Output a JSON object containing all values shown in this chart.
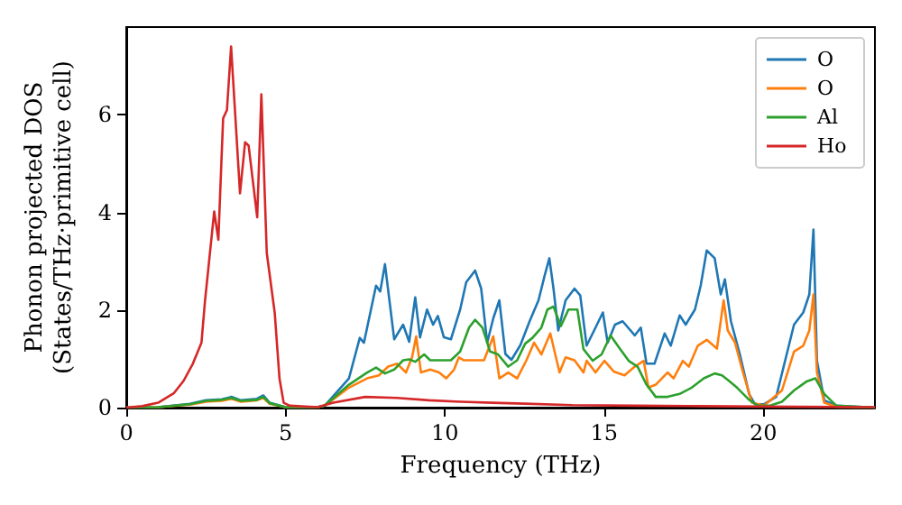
{
  "chart_data": {
    "type": "line",
    "xlabel": "Frequency (THz)",
    "ylabel": "Phonon projected DOS\n(States/THz·primitive cell)",
    "xlim": [
      0,
      23.5
    ],
    "xticks": [
      0,
      5,
      10,
      15,
      20
    ],
    "ylim": [
      0,
      7.8
    ],
    "yticks": [
      0,
      2,
      4,
      6
    ],
    "grid": false,
    "legend": "top right",
    "marker": "none",
    "line_style": "solid",
    "series": [
      {
        "name": "O",
        "color": "#1f77b4",
        "x": [
          0,
          1,
          2,
          2.5,
          3,
          3.3,
          3.6,
          4.1,
          4.3,
          4.5,
          5,
          6,
          6.23,
          6.99,
          7.33,
          7.46,
          7.84,
          7.97,
          8.12,
          8.41,
          8.69,
          8.88,
          9.07,
          9.22,
          9.44,
          9.63,
          9.78,
          9.97,
          10.19,
          10.48,
          10.67,
          10.95,
          11.14,
          11.33,
          11.52,
          11.71,
          11.9,
          12.09,
          12.37,
          12.66,
          12.94,
          13.13,
          13.28,
          13.41,
          13.56,
          13.79,
          14.07,
          14.25,
          14.45,
          14.73,
          14.96,
          15.11,
          15.34,
          15.58,
          15.96,
          16.15,
          16.33,
          16.58,
          16.9,
          17.09,
          17.37,
          17.56,
          17.85,
          18.03,
          18.22,
          18.47,
          18.66,
          18.79,
          18.98,
          19.26,
          19.55,
          19.73,
          20.02,
          20.4,
          20.68,
          20.96,
          21.25,
          21.44,
          21.57,
          21.68,
          21.91,
          22.29,
          23.5
        ],
        "values": [
          0,
          0.01,
          0.08,
          0.15,
          0.17,
          0.22,
          0.15,
          0.18,
          0.25,
          0.1,
          0.01,
          0.01,
          0.04,
          0.6,
          1.43,
          1.33,
          2.5,
          2.38,
          2.94,
          1.4,
          1.7,
          1.35,
          2.26,
          1.44,
          2.01,
          1.7,
          1.88,
          1.44,
          1.4,
          2.01,
          2.57,
          2.81,
          2.44,
          1.33,
          1.83,
          2.2,
          1.1,
          0.98,
          1.28,
          1.77,
          2.2,
          2.7,
          3.06,
          2.44,
          1.58,
          2.2,
          2.44,
          2.3,
          1.27,
          1.64,
          1.95,
          1.33,
          1.7,
          1.77,
          1.48,
          1.64,
          0.9,
          0.9,
          1.52,
          1.27,
          1.89,
          1.7,
          2.01,
          2.5,
          3.22,
          3.06,
          2.32,
          2.63,
          1.77,
          1.09,
          0.28,
          0.07,
          0.07,
          0.22,
          0.96,
          1.7,
          1.95,
          2.32,
          3.65,
          0.96,
          0.15,
          0.04,
          0
        ]
      },
      {
        "name": "O",
        "color": "#ff7f0e",
        "x": [
          0,
          1,
          2,
          2.5,
          3,
          3.3,
          3.6,
          4.1,
          4.3,
          4.5,
          5,
          6,
          6.23,
          6.99,
          7.56,
          7.93,
          8.22,
          8.5,
          8.78,
          8.97,
          9.1,
          9.25,
          9.54,
          9.82,
          10.04,
          10.29,
          10.44,
          10.6,
          10.95,
          11.23,
          11.52,
          11.71,
          11.99,
          12.27,
          12.56,
          12.8,
          13.03,
          13.31,
          13.6,
          13.79,
          14.07,
          14.35,
          14.45,
          14.73,
          15.01,
          15.3,
          15.64,
          15.96,
          16.24,
          16.39,
          16.62,
          16.99,
          17.18,
          17.47,
          17.66,
          17.94,
          18.22,
          18.54,
          18.75,
          18.88,
          19.11,
          19.36,
          19.64,
          20.02,
          20.58,
          20.96,
          21.25,
          21.44,
          21.57,
          21.68,
          21.91,
          22.29,
          23.5
        ],
        "values": [
          0,
          0.01,
          0.06,
          0.12,
          0.14,
          0.18,
          0.12,
          0.15,
          0.2,
          0.08,
          0.01,
          0.01,
          0.04,
          0.41,
          0.6,
          0.66,
          0.84,
          0.9,
          0.72,
          1.03,
          1.46,
          0.72,
          0.78,
          0.72,
          0.6,
          0.78,
          1.03,
          0.97,
          0.97,
          0.97,
          1.46,
          0.6,
          0.72,
          0.6,
          0.97,
          1.33,
          1.09,
          1.52,
          0.72,
          1.03,
          0.97,
          0.72,
          0.96,
          0.72,
          0.96,
          0.74,
          0.66,
          0.84,
          0.96,
          0.41,
          0.47,
          0.72,
          0.6,
          0.96,
          0.84,
          1.27,
          1.39,
          1.21,
          2.2,
          1.58,
          1.33,
          0.72,
          0.1,
          0.04,
          0.35,
          1.15,
          1.27,
          1.58,
          2.32,
          0.72,
          0.1,
          0.02,
          0
        ]
      },
      {
        "name": "Al",
        "color": "#2ca02c",
        "x": [
          0,
          1,
          2,
          2.5,
          3,
          3.3,
          3.6,
          4.1,
          4.3,
          4.5,
          5,
          6,
          6.23,
          6.99,
          7.56,
          7.84,
          8.12,
          8.41,
          8.69,
          8.88,
          9.07,
          9.35,
          9.54,
          9.82,
          10.19,
          10.48,
          10.76,
          10.95,
          11.18,
          11.42,
          11.67,
          11.99,
          12.27,
          12.52,
          12.75,
          13.03,
          13.22,
          13.41,
          13.64,
          13.88,
          14.16,
          14.35,
          14.64,
          14.92,
          15.2,
          15.49,
          15.77,
          16.05,
          16.33,
          16.62,
          16.99,
          17.37,
          17.75,
          18.13,
          18.47,
          18.7,
          18.88,
          19.17,
          19.55,
          19.83,
          20.21,
          20.58,
          20.96,
          21.34,
          21.63,
          21.91,
          22.29,
          23.5
        ],
        "values": [
          0,
          0.01,
          0.07,
          0.14,
          0.16,
          0.2,
          0.14,
          0.16,
          0.22,
          0.09,
          0.01,
          0.01,
          0.04,
          0.47,
          0.72,
          0.82,
          0.7,
          0.78,
          0.97,
          0.99,
          0.94,
          1.09,
          0.97,
          0.97,
          0.97,
          1.15,
          1.64,
          1.8,
          1.64,
          1.15,
          1.09,
          0.84,
          0.97,
          1.31,
          1.43,
          1.64,
          2.01,
          2.07,
          1.67,
          2.01,
          2.01,
          1.2,
          0.96,
          1.09,
          1.48,
          1.21,
          0.96,
          0.84,
          0.47,
          0.22,
          0.22,
          0.28,
          0.41,
          0.6,
          0.7,
          0.66,
          0.57,
          0.41,
          0.16,
          0.04,
          0.04,
          0.12,
          0.35,
          0.53,
          0.6,
          0.28,
          0.04,
          0
        ]
      },
      {
        "name": "Ho",
        "color": "#d62728",
        "x": [
          0,
          0.5,
          1,
          1.5,
          1.8,
          2.09,
          2.36,
          2.47,
          2.76,
          2.89,
          3.04,
          3.16,
          3.29,
          3.57,
          3.73,
          3.84,
          4.11,
          4.24,
          4.41,
          4.66,
          4.81,
          4.94,
          5.13,
          6,
          6.5,
          7.5,
          8.5,
          9.5,
          10.5,
          11.5,
          12.5,
          14,
          16,
          18,
          20,
          23.5
        ],
        "values": [
          0,
          0.03,
          0.1,
          0.3,
          0.55,
          0.9,
          1.33,
          2.18,
          4.02,
          3.44,
          5.93,
          6.1,
          7.4,
          4.39,
          5.44,
          5.37,
          3.9,
          6.42,
          3.17,
          1.94,
          0.59,
          0.1,
          0.04,
          0.01,
          0.1,
          0.22,
          0.2,
          0.15,
          0.12,
          0.1,
          0.08,
          0.05,
          0.04,
          0.03,
          0.02,
          0.01
        ]
      }
    ]
  }
}
